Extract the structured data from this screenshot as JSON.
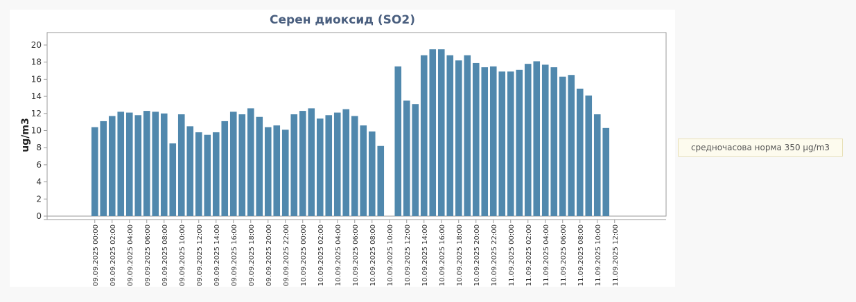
{
  "note": {
    "text": "средночасова норма 350 µg/m3"
  },
  "chart_data": {
    "type": "bar",
    "title": "Серен диоксид (SO2)",
    "xlabel": "",
    "ylabel": "ug/m3",
    "ylim": [
      0,
      21.5
    ],
    "yticks": [
      0,
      2,
      4,
      6,
      8,
      10,
      12,
      14,
      16,
      18,
      20
    ],
    "grid": false,
    "bar_color": "#5088ad",
    "x_tick_labels": [
      "09.09.2025 00:00",
      "09.09.2025 02:00",
      "09.09.2025 04:00",
      "09.09.2025 06:00",
      "09.09.2025 08:00",
      "09.09.2025 10:00",
      "09.09.2025 12:00",
      "09.09.2025 14:00",
      "09.09.2025 16:00",
      "09.09.2025 18:00",
      "09.09.2025 20:00",
      "09.09.2025 22:00",
      "10.09.2025 00:00",
      "10.09.2025 02:00",
      "10.09.2025 04:00",
      "10.09.2025 06:00",
      "10.09.2025 08:00",
      "10.09.2025 10:00",
      "10.09.2025 12:00",
      "10.09.2025 14:00",
      "10.09.2025 16:00",
      "10.09.2025 18:00",
      "10.09.2025 20:00",
      "10.09.2025 22:00",
      "11.09.2025 00:00",
      "11.09.2025 02:00",
      "11.09.2025 04:00",
      "11.09.2025 06:00",
      "11.09.2025 08:00",
      "11.09.2025 10:00",
      "11.09.2025 12:00"
    ],
    "values": [
      10.4,
      11.1,
      11.7,
      12.2,
      12.1,
      11.8,
      12.3,
      12.2,
      12.0,
      8.5,
      11.9,
      10.5,
      9.8,
      9.5,
      9.8,
      11.1,
      12.2,
      11.9,
      12.6,
      11.6,
      10.4,
      10.6,
      10.1,
      11.9,
      12.3,
      12.6,
      11.4,
      11.8,
      12.1,
      12.5,
      11.7,
      10.6,
      9.9,
      8.2,
      null,
      17.5,
      13.5,
      13.1,
      18.8,
      19.5,
      19.5,
      18.8,
      18.2,
      18.8,
      17.9,
      17.4,
      17.5,
      16.9,
      16.9,
      17.1,
      17.8,
      18.1,
      17.7,
      17.4,
      16.3,
      16.5,
      14.9,
      14.1,
      11.9,
      10.3
    ]
  }
}
